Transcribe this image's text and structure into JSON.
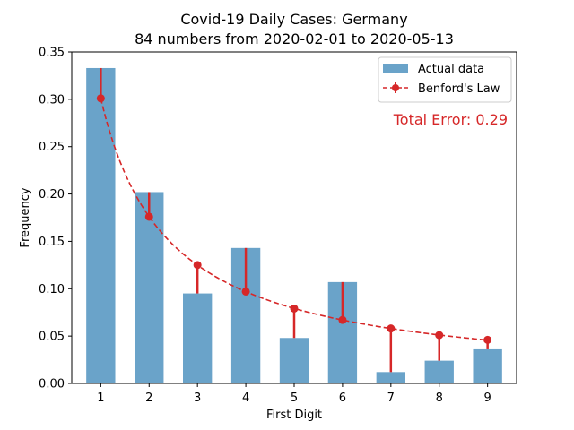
{
  "chart_data": {
    "type": "bar",
    "title": "Covid-19 Daily Cases: Germany",
    "subtitle": "84 numbers from 2020-02-01 to 2020-05-13",
    "xlabel": "First Digit",
    "ylabel": "Frequency",
    "categories": [
      "1",
      "2",
      "3",
      "4",
      "5",
      "6",
      "7",
      "8",
      "9"
    ],
    "ylim": [
      0,
      0.35
    ],
    "yticks": [
      "0.00",
      "0.05",
      "0.10",
      "0.15",
      "0.20",
      "0.25",
      "0.30",
      "0.35"
    ],
    "grid": false,
    "legend_position": "top-right",
    "series": [
      {
        "name": "Actual data",
        "kind": "bar",
        "color": "#6aa3c9",
        "values": [
          0.333,
          0.202,
          0.095,
          0.143,
          0.048,
          0.107,
          0.012,
          0.024,
          0.036
        ]
      },
      {
        "name": "Benford's Law",
        "kind": "line",
        "style": "dashed, circle markers, error bars to actual values",
        "color": "#d62728",
        "values": [
          0.301,
          0.176,
          0.125,
          0.097,
          0.079,
          0.067,
          0.058,
          0.051,
          0.046
        ]
      }
    ],
    "annotation": {
      "text": "Total Error: 0.29",
      "color": "#d62728",
      "position": "upper-right"
    }
  }
}
